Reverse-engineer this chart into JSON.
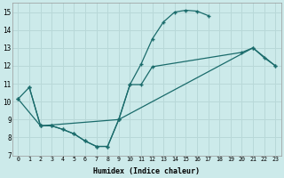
{
  "xlabel": "Humidex (Indice chaleur)",
  "background_color": "#cceaea",
  "grid_color": "#b8d8d8",
  "line_color": "#1a6b6b",
  "xlim": [
    -0.5,
    23.5
  ],
  "ylim": [
    7,
    15.5
  ],
  "xticks": [
    0,
    1,
    2,
    3,
    4,
    5,
    6,
    7,
    8,
    9,
    10,
    11,
    12,
    13,
    14,
    15,
    16,
    17,
    18,
    19,
    20,
    21,
    22,
    23
  ],
  "yticks": [
    7,
    8,
    9,
    10,
    11,
    12,
    13,
    14,
    15
  ],
  "line1_x": [
    0,
    1,
    2,
    3,
    4,
    5,
    6,
    7,
    8,
    9,
    10,
    11,
    12,
    13,
    14,
    15,
    16,
    17
  ],
  "line1_y": [
    10.15,
    10.8,
    8.65,
    8.65,
    8.45,
    8.2,
    7.8,
    7.5,
    7.5,
    9.0,
    10.95,
    12.1,
    13.5,
    14.45,
    15.0,
    15.1,
    15.05,
    14.8
  ],
  "line2_x": [
    1,
    2,
    3,
    4,
    5,
    6,
    7,
    8,
    9,
    10,
    11,
    12,
    20,
    21,
    22,
    23
  ],
  "line2_y": [
    10.8,
    8.65,
    8.65,
    8.45,
    8.2,
    7.8,
    7.5,
    7.5,
    9.0,
    10.95,
    10.95,
    11.95,
    12.75,
    13.0,
    12.45,
    12.0
  ],
  "line3_x": [
    0,
    2,
    9,
    21,
    23
  ],
  "line3_y": [
    10.15,
    8.65,
    9.0,
    13.0,
    12.0
  ]
}
